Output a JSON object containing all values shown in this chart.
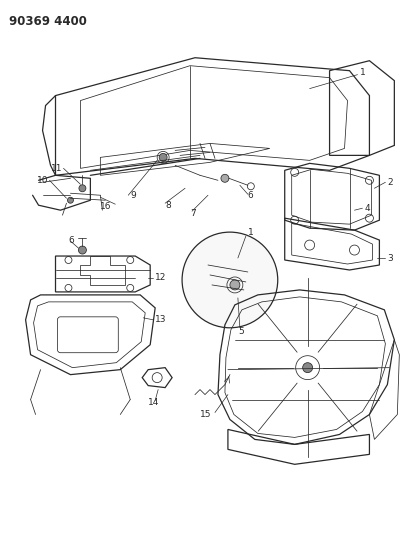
{
  "title": "90369 4400",
  "bg_color": "#ffffff",
  "lc": "#2a2a2a",
  "lc_thin": "#444444",
  "figsize": [
    4.07,
    5.33
  ],
  "dpi": 100,
  "title_fs": 8.5,
  "label_fs": 6.5
}
